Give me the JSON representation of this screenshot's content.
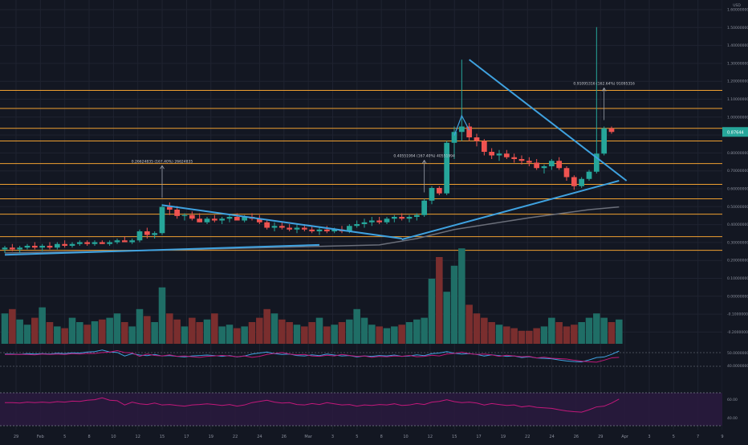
{
  "chart_data": {
    "type": "candlestick",
    "title": "",
    "currency": "USD",
    "colors": {
      "background": "#131722",
      "up": "#26a69a",
      "down": "#ef5350",
      "volume_up": "#1f6e66",
      "volume_down": "#7a2e2e",
      "level_line": "#f0a030",
      "trendline": "#3fa2e0",
      "moving_average": "#6b6f7a",
      "rsi_line": "#c2187a",
      "rsi_band": "#2a1a3e",
      "grid": "#1f2330",
      "text": "#8a8f9c",
      "price_tag": "#26a69a"
    },
    "price_axis": {
      "ticks": [
        "1.60000000",
        "1.50000000",
        "1.40000000",
        "1.30000000",
        "1.20000000",
        "1.10000000",
        "1.00000000",
        "0.90000000",
        "0.80000000",
        "0.70000000",
        "0.60000000",
        "0.50000000",
        "0.40000000",
        "0.30000000",
        "0.20000000",
        "0.10000000",
        "0.00000000",
        "-0.10000000",
        "-0.20000000"
      ],
      "current_price_label": "0.87644"
    },
    "time_axis": {
      "ticks": [
        "29",
        "Feb",
        "5",
        "8",
        "10",
        "12",
        "15",
        "17",
        "19",
        "22",
        "24",
        "26",
        "Mar",
        "3",
        "5",
        "8",
        "10",
        "12",
        "15",
        "17",
        "19",
        "22",
        "24",
        "26",
        "29",
        "Apr",
        "3",
        "5",
        "7",
        "9"
      ]
    },
    "horizontal_levels": [
      1.1,
      1.0,
      0.89,
      0.82,
      0.695,
      0.58,
      0.5,
      0.415,
      0.2905,
      0.215
    ],
    "candles": [
      {
        "o": 0.22,
        "h": 0.24,
        "l": 0.2,
        "c": 0.23
      },
      {
        "o": 0.23,
        "h": 0.25,
        "l": 0.21,
        "c": 0.22
      },
      {
        "o": 0.22,
        "h": 0.24,
        "l": 0.2,
        "c": 0.23
      },
      {
        "o": 0.23,
        "h": 0.25,
        "l": 0.22,
        "c": 0.24
      },
      {
        "o": 0.24,
        "h": 0.26,
        "l": 0.22,
        "c": 0.23
      },
      {
        "o": 0.23,
        "h": 0.25,
        "l": 0.21,
        "c": 0.24
      },
      {
        "o": 0.24,
        "h": 0.26,
        "l": 0.22,
        "c": 0.23
      },
      {
        "o": 0.23,
        "h": 0.26,
        "l": 0.22,
        "c": 0.25
      },
      {
        "o": 0.25,
        "h": 0.27,
        "l": 0.23,
        "c": 0.24
      },
      {
        "o": 0.24,
        "h": 0.26,
        "l": 0.23,
        "c": 0.25
      },
      {
        "o": 0.25,
        "h": 0.27,
        "l": 0.24,
        "c": 0.26
      },
      {
        "o": 0.26,
        "h": 0.27,
        "l": 0.24,
        "c": 0.25
      },
      {
        "o": 0.25,
        "h": 0.27,
        "l": 0.24,
        "c": 0.26
      },
      {
        "o": 0.26,
        "h": 0.27,
        "l": 0.25,
        "c": 0.25
      },
      {
        "o": 0.25,
        "h": 0.27,
        "l": 0.24,
        "c": 0.26
      },
      {
        "o": 0.26,
        "h": 0.28,
        "l": 0.25,
        "c": 0.27
      },
      {
        "o": 0.27,
        "h": 0.29,
        "l": 0.26,
        "c": 0.26
      },
      {
        "o": 0.26,
        "h": 0.28,
        "l": 0.25,
        "c": 0.27
      },
      {
        "o": 0.27,
        "h": 0.33,
        "l": 0.26,
        "c": 0.32
      },
      {
        "o": 0.32,
        "h": 0.34,
        "l": 0.28,
        "c": 0.3
      },
      {
        "o": 0.3,
        "h": 0.32,
        "l": 0.28,
        "c": 0.31
      },
      {
        "o": 0.31,
        "h": 0.47,
        "l": 0.3,
        "c": 0.455
      },
      {
        "o": 0.455,
        "h": 0.48,
        "l": 0.41,
        "c": 0.44
      },
      {
        "o": 0.44,
        "h": 0.46,
        "l": 0.39,
        "c": 0.405
      },
      {
        "o": 0.405,
        "h": 0.42,
        "l": 0.38,
        "c": 0.41
      },
      {
        "o": 0.41,
        "h": 0.43,
        "l": 0.38,
        "c": 0.39
      },
      {
        "o": 0.39,
        "h": 0.42,
        "l": 0.37,
        "c": 0.37
      },
      {
        "o": 0.37,
        "h": 0.4,
        "l": 0.36,
        "c": 0.39
      },
      {
        "o": 0.39,
        "h": 0.41,
        "l": 0.37,
        "c": 0.38
      },
      {
        "o": 0.38,
        "h": 0.4,
        "l": 0.36,
        "c": 0.39
      },
      {
        "o": 0.39,
        "h": 0.41,
        "l": 0.37,
        "c": 0.4
      },
      {
        "o": 0.4,
        "h": 0.42,
        "l": 0.38,
        "c": 0.38
      },
      {
        "o": 0.38,
        "h": 0.41,
        "l": 0.37,
        "c": 0.4
      },
      {
        "o": 0.4,
        "h": 0.42,
        "l": 0.38,
        "c": 0.39
      },
      {
        "o": 0.39,
        "h": 0.41,
        "l": 0.36,
        "c": 0.37
      },
      {
        "o": 0.37,
        "h": 0.38,
        "l": 0.33,
        "c": 0.34
      },
      {
        "o": 0.34,
        "h": 0.37,
        "l": 0.32,
        "c": 0.35
      },
      {
        "o": 0.35,
        "h": 0.37,
        "l": 0.33,
        "c": 0.34
      },
      {
        "o": 0.34,
        "h": 0.36,
        "l": 0.32,
        "c": 0.33
      },
      {
        "o": 0.33,
        "h": 0.36,
        "l": 0.31,
        "c": 0.34
      },
      {
        "o": 0.34,
        "h": 0.36,
        "l": 0.32,
        "c": 0.33
      },
      {
        "o": 0.33,
        "h": 0.35,
        "l": 0.31,
        "c": 0.32
      },
      {
        "o": 0.32,
        "h": 0.34,
        "l": 0.3,
        "c": 0.33
      },
      {
        "o": 0.33,
        "h": 0.35,
        "l": 0.31,
        "c": 0.32
      },
      {
        "o": 0.32,
        "h": 0.34,
        "l": 0.31,
        "c": 0.33
      },
      {
        "o": 0.33,
        "h": 0.35,
        "l": 0.31,
        "c": 0.32
      },
      {
        "o": 0.32,
        "h": 0.36,
        "l": 0.31,
        "c": 0.35
      },
      {
        "o": 0.35,
        "h": 0.38,
        "l": 0.34,
        "c": 0.36
      },
      {
        "o": 0.36,
        "h": 0.39,
        "l": 0.34,
        "c": 0.37
      },
      {
        "o": 0.37,
        "h": 0.4,
        "l": 0.35,
        "c": 0.38
      },
      {
        "o": 0.38,
        "h": 0.4,
        "l": 0.36,
        "c": 0.37
      },
      {
        "o": 0.37,
        "h": 0.4,
        "l": 0.36,
        "c": 0.39
      },
      {
        "o": 0.39,
        "h": 0.41,
        "l": 0.37,
        "c": 0.4
      },
      {
        "o": 0.4,
        "h": 0.42,
        "l": 0.38,
        "c": 0.39
      },
      {
        "o": 0.39,
        "h": 0.41,
        "l": 0.37,
        "c": 0.4
      },
      {
        "o": 0.4,
        "h": 0.42,
        "l": 0.38,
        "c": 0.41
      },
      {
        "o": 0.41,
        "h": 0.5,
        "l": 0.4,
        "c": 0.49
      },
      {
        "o": 0.49,
        "h": 0.57,
        "l": 0.47,
        "c": 0.56
      },
      {
        "o": 0.56,
        "h": 0.57,
        "l": 0.52,
        "c": 0.53
      },
      {
        "o": 0.53,
        "h": 0.82,
        "l": 0.52,
        "c": 0.81
      },
      {
        "o": 0.81,
        "h": 0.9,
        "l": 0.72,
        "c": 0.87
      },
      {
        "o": 0.87,
        "h": 1.27,
        "l": 0.82,
        "c": 0.9
      },
      {
        "o": 0.9,
        "h": 0.92,
        "l": 0.82,
        "c": 0.84
      },
      {
        "o": 0.84,
        "h": 0.86,
        "l": 0.79,
        "c": 0.82
      },
      {
        "o": 0.82,
        "h": 0.83,
        "l": 0.74,
        "c": 0.76
      },
      {
        "o": 0.76,
        "h": 0.78,
        "l": 0.72,
        "c": 0.74
      },
      {
        "o": 0.74,
        "h": 0.77,
        "l": 0.71,
        "c": 0.75
      },
      {
        "o": 0.75,
        "h": 0.77,
        "l": 0.72,
        "c": 0.73
      },
      {
        "o": 0.73,
        "h": 0.75,
        "l": 0.7,
        "c": 0.72
      },
      {
        "o": 0.72,
        "h": 0.74,
        "l": 0.69,
        "c": 0.71
      },
      {
        "o": 0.71,
        "h": 0.73,
        "l": 0.68,
        "c": 0.7
      },
      {
        "o": 0.7,
        "h": 0.72,
        "l": 0.66,
        "c": 0.67
      },
      {
        "o": 0.67,
        "h": 0.69,
        "l": 0.64,
        "c": 0.68
      },
      {
        "o": 0.68,
        "h": 0.72,
        "l": 0.66,
        "c": 0.71
      },
      {
        "o": 0.71,
        "h": 0.73,
        "l": 0.66,
        "c": 0.67
      },
      {
        "o": 0.67,
        "h": 0.68,
        "l": 0.6,
        "c": 0.62
      },
      {
        "o": 0.62,
        "h": 0.63,
        "l": 0.55,
        "c": 0.57
      },
      {
        "o": 0.57,
        "h": 0.62,
        "l": 0.56,
        "c": 0.61
      },
      {
        "o": 0.61,
        "h": 0.66,
        "l": 0.6,
        "c": 0.65
      },
      {
        "o": 0.65,
        "h": 1.45,
        "l": 0.64,
        "c": 0.75
      },
      {
        "o": 0.75,
        "h": 0.9,
        "l": 0.74,
        "c": 0.89
      },
      {
        "o": 0.89,
        "h": 0.9,
        "l": 0.86,
        "c": 0.87
      }
    ],
    "volume": [
      0.35,
      0.4,
      0.28,
      0.22,
      0.3,
      0.42,
      0.25,
      0.2,
      0.18,
      0.3,
      0.25,
      0.22,
      0.26,
      0.28,
      0.3,
      0.35,
      0.25,
      0.2,
      0.4,
      0.32,
      0.25,
      0.65,
      0.35,
      0.28,
      0.2,
      0.3,
      0.25,
      0.28,
      0.35,
      0.2,
      0.22,
      0.18,
      0.2,
      0.25,
      0.3,
      0.4,
      0.35,
      0.28,
      0.25,
      0.22,
      0.2,
      0.25,
      0.3,
      0.2,
      0.22,
      0.25,
      0.28,
      0.4,
      0.3,
      0.22,
      0.2,
      0.18,
      0.2,
      0.22,
      0.25,
      0.28,
      0.3,
      0.75,
      1.0,
      0.6,
      0.9,
      1.1,
      0.45,
      0.35,
      0.3,
      0.25,
      0.22,
      0.2,
      0.18,
      0.15,
      0.15,
      0.18,
      0.2,
      0.3,
      0.25,
      0.2,
      0.22,
      0.25,
      0.3,
      0.35,
      0.3,
      0.25,
      0.28
    ],
    "moving_average": [
      [
        0,
        0.2
      ],
      [
        20,
        0.215
      ],
      [
        40,
        0.235
      ],
      [
        50,
        0.245
      ],
      [
        55,
        0.28
      ],
      [
        60,
        0.33
      ],
      [
        70,
        0.395
      ],
      [
        78,
        0.44
      ],
      [
        82,
        0.455
      ]
    ],
    "rsi_line": [
      0.7,
      0.7,
      0.68,
      0.72,
      0.7,
      0.72,
      0.7,
      0.74,
      0.72,
      0.76,
      0.75,
      0.8,
      0.82,
      0.9,
      0.8,
      0.78,
      0.6,
      0.72,
      0.65,
      0.62,
      0.68,
      0.6,
      0.62,
      0.58,
      0.55,
      0.6,
      0.62,
      0.65,
      0.62,
      0.58,
      0.62,
      0.55,
      0.6,
      0.7,
      0.75,
      0.8,
      0.72,
      0.68,
      0.7,
      0.62,
      0.6,
      0.66,
      0.62,
      0.7,
      0.65,
      0.6,
      0.62,
      0.55,
      0.6,
      0.58,
      0.62,
      0.6,
      0.65,
      0.58,
      0.6,
      0.66,
      0.62,
      0.72,
      0.75,
      0.82,
      0.74,
      0.7,
      0.72,
      0.68,
      0.6,
      0.66,
      0.62,
      0.58,
      0.6,
      0.52,
      0.56,
      0.5,
      0.48,
      0.46,
      0.4,
      0.35,
      0.32,
      0.3,
      0.4,
      0.52,
      0.55,
      0.68,
      0.85
    ],
    "annotations": [
      {
        "label": "0.26624835 (167.40%) 26624835",
        "candle": 21
      },
      {
        "label": "0.40551994 (167.40%) 40551994",
        "candle": 56
      },
      {
        "label": "0.91095316 (162.64%) 91095316",
        "candle": 80
      }
    ],
    "grid": true,
    "indicator_labels": {
      "osc_top": "50.00000000",
      "osc_bottom": "40.00000000",
      "rsi_top": "60.00",
      "rsi_bottom": "40.00"
    }
  }
}
